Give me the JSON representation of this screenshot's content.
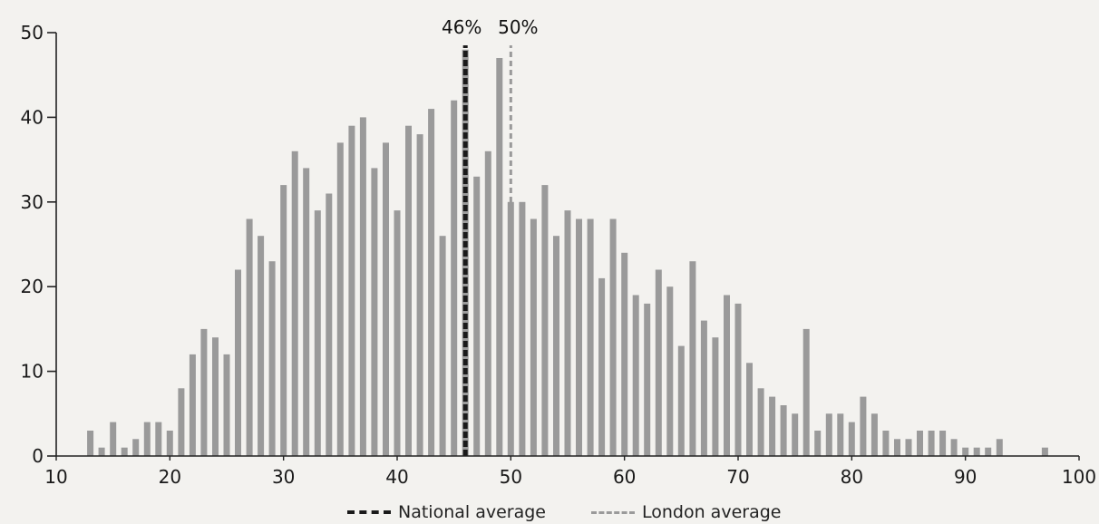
{
  "chart_data": {
    "type": "bar",
    "title": "",
    "xlabel": "",
    "ylabel": "",
    "xlim": [
      10,
      100
    ],
    "ylim": [
      0,
      50
    ],
    "xticks": [
      10,
      20,
      30,
      40,
      50,
      60,
      70,
      80,
      90,
      100
    ],
    "yticks": [
      0,
      10,
      20,
      30,
      40,
      50
    ],
    "grid": false,
    "bar_color": "#9a9a9a",
    "x": [
      13,
      14,
      15,
      16,
      17,
      18,
      19,
      20,
      21,
      22,
      23,
      24,
      25,
      26,
      27,
      28,
      29,
      30,
      31,
      32,
      33,
      34,
      35,
      36,
      37,
      38,
      39,
      40,
      41,
      42,
      43,
      44,
      45,
      46,
      47,
      48,
      49,
      50,
      51,
      52,
      53,
      54,
      55,
      56,
      57,
      58,
      59,
      60,
      61,
      62,
      63,
      64,
      65,
      66,
      67,
      68,
      69,
      70,
      71,
      72,
      73,
      74,
      75,
      76,
      77,
      78,
      79,
      80,
      81,
      82,
      83,
      84,
      85,
      86,
      87,
      88,
      89,
      90,
      91,
      92,
      93,
      97
    ],
    "values": [
      3,
      1,
      4,
      1,
      2,
      4,
      4,
      3,
      8,
      12,
      15,
      14,
      12,
      22,
      28,
      26,
      23,
      32,
      36,
      34,
      29,
      31,
      37,
      39,
      40,
      34,
      37,
      29,
      39,
      38,
      41,
      26,
      42,
      48,
      33,
      36,
      47,
      30,
      30,
      28,
      32,
      26,
      29,
      28,
      28,
      21,
      28,
      24,
      19,
      18,
      22,
      20,
      13,
      23,
      16,
      14,
      19,
      18,
      11,
      8,
      7,
      6,
      5,
      15,
      3,
      5,
      5,
      4,
      7,
      5,
      3,
      2,
      2,
      3,
      3,
      3,
      2,
      1,
      1,
      1,
      2,
      1
    ],
    "reference_lines": [
      {
        "name": "National average",
        "x": 46,
        "label": "46%",
        "color": "#1a1a1a",
        "style": "dashed"
      },
      {
        "name": "London average",
        "x": 50,
        "label": "50%",
        "color": "#9a9a9a",
        "style": "dashed"
      }
    ],
    "legend": {
      "placement": "bottom-center",
      "entries": [
        "National average",
        "London average"
      ]
    }
  }
}
